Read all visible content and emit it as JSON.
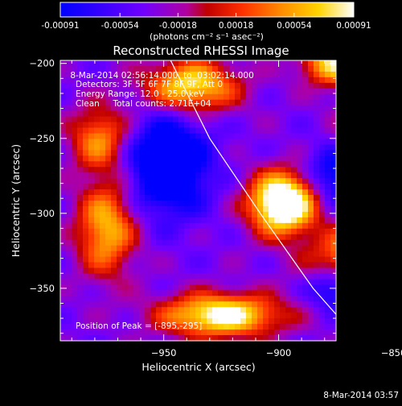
{
  "chart_data": {
    "type": "heatmap",
    "title": "Reconstructed RHESSI Image",
    "xlabel": "Heliocentric X (arcsec)",
    "ylabel": "Heliocentric Y (arcsec)",
    "xlim": [
      -995,
      -875
    ],
    "ylim": [
      -385,
      -198
    ],
    "x_ticks": [
      -950,
      -900,
      -850
    ],
    "y_ticks": [
      -200,
      -250,
      -300,
      -350
    ],
    "colorbar": {
      "label": "(photons cm⁻² s⁻¹ asec⁻²)",
      "range": [
        -0.00091,
        0.00091
      ],
      "tick_values": [
        -0.00091,
        -0.00054,
        -0.00018,
        0.00018,
        0.00054,
        0.00091
      ],
      "tick_labels": [
        "-0.00091",
        "-0.00054",
        "-0.00018",
        "0.00018",
        "0.00054",
        "0.00091"
      ]
    },
    "annotations": [
      " 8-Mar-2014 02:56:14.000  to  03:02:14.000",
      "Detectors: 3F 5F 6F 7F 8F 9F, Att 0",
      "Energy Range: 12.0 - 25.0 keV",
      "Clean     Total counts: 2.71E+04"
    ],
    "peak_label": "Position of Peak = [-895,-295]",
    "peak_position": [
      -895,
      -295
    ],
    "footer": "8-Mar-2014 03:57",
    "limb_curve": [
      [
        -947,
        -198
      ],
      [
        -930,
        -250
      ],
      [
        -908,
        -300
      ],
      [
        -885,
        -350
      ],
      [
        -862,
        -390
      ]
    ],
    "sources": [
      {
        "x": -898,
        "y": -293,
        "a": 1.0,
        "sx": 10,
        "sy": 14
      },
      {
        "x": -845,
        "y": -250,
        "a": 0.95,
        "sx": 14,
        "sy": 30
      },
      {
        "x": -855,
        "y": -330,
        "a": 0.85,
        "sx": 18,
        "sy": 14
      },
      {
        "x": -925,
        "y": -368,
        "a": 0.75,
        "sx": 18,
        "sy": 10
      },
      {
        "x": -938,
        "y": -215,
        "a": 0.65,
        "sx": 14,
        "sy": 12
      },
      {
        "x": -975,
        "y": -310,
        "a": 0.55,
        "sx": 9,
        "sy": 22
      },
      {
        "x": -978,
        "y": -250,
        "a": 0.45,
        "sx": 9,
        "sy": 15
      },
      {
        "x": -876,
        "y": -200,
        "a": 0.6,
        "sx": 10,
        "sy": 10
      },
      {
        "x": -948,
        "y": -268,
        "a": -0.6,
        "sx": 12,
        "sy": 22
      },
      {
        "x": -873,
        "y": -275,
        "a": -0.45,
        "sx": 10,
        "sy": 14
      },
      {
        "x": -875,
        "y": -350,
        "a": -0.4,
        "sx": 8,
        "sy": 10
      }
    ]
  }
}
